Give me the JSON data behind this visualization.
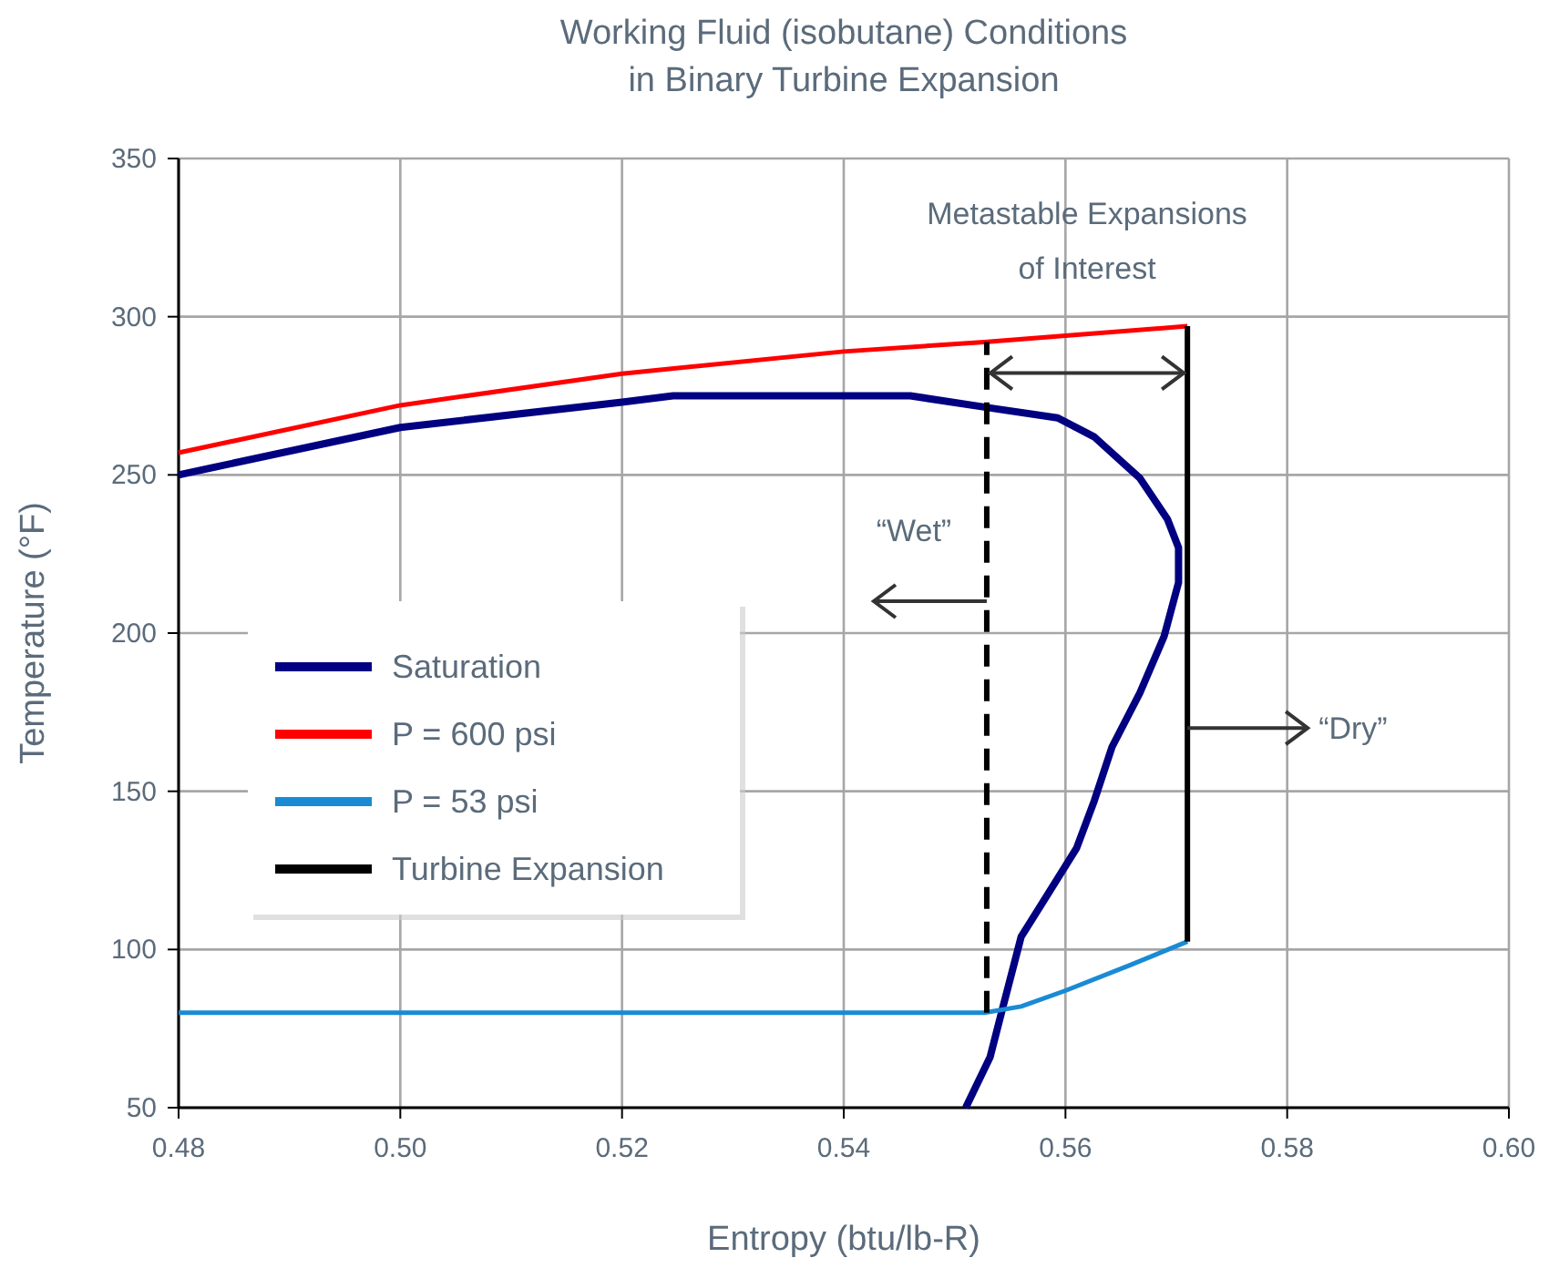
{
  "chart_data": {
    "type": "line",
    "title": "Working Fluid (isobutane) Conditions\nin Binary Turbine Expansion",
    "xlabel": "Entropy (btu/lb-R)",
    "ylabel": "Temperature (°F)",
    "xlim": [
      0.48,
      0.6
    ],
    "xticks": [
      {
        "value": 0.48,
        "label": "0.48"
      },
      {
        "value": 0.5,
        "label": "0.50"
      },
      {
        "value": 0.52,
        "label": "0.52"
      },
      {
        "value": 0.54,
        "label": "0.54"
      },
      {
        "value": 0.56,
        "label": "0.56"
      },
      {
        "value": 0.58,
        "label": "0.58"
      },
      {
        "value": 0.6,
        "label": "0.60"
      }
    ],
    "ylim": [
      50,
      350
    ],
    "yticks": [
      50,
      100,
      150,
      200,
      250,
      300,
      350
    ],
    "grid": true,
    "legend": "left",
    "line_style": "solid",
    "marker": "none",
    "series": [
      {
        "name": "Saturation",
        "color": "#000080",
        "x": [
          0.48,
          0.5,
          0.52,
          0.5246,
          0.546,
          0.5535,
          0.5593,
          0.5626,
          0.5667,
          0.5692,
          0.5702,
          0.5702,
          0.5689,
          0.5667,
          0.5642,
          0.5626,
          0.561,
          0.5585,
          0.556,
          0.5543,
          0.5532,
          0.551
        ],
        "values": [
          250,
          265,
          273,
          275,
          275,
          271,
          268,
          262,
          249,
          236,
          227,
          216,
          199,
          181,
          164,
          147,
          132,
          118,
          104,
          81,
          66,
          50
        ]
      },
      {
        "name": "P = 600 psi",
        "color": "#ff0000",
        "x": [
          0.48,
          0.5,
          0.52,
          0.54,
          0.5527,
          0.56,
          0.571
        ],
        "values": [
          257,
          272,
          282,
          289,
          292,
          294,
          297
        ]
      },
      {
        "name": "P = 53 psi",
        "color": "#1a8ad4",
        "x": [
          0.48,
          0.5527,
          0.556,
          0.56,
          0.5658,
          0.571
        ],
        "values": [
          80,
          80,
          82,
          87,
          95,
          102.5
        ]
      },
      {
        "name": "Turbine Expansion",
        "color": "#000000",
        "x": [
          0.571,
          0.571
        ],
        "values": [
          102.5,
          297
        ]
      },
      {
        "color": "#000000",
        "line_style": "dashed",
        "x": [
          0.5529,
          0.5529
        ],
        "values": [
          80,
          292
        ]
      }
    ],
    "annotations": [
      "Metastable Expansions\nof Interest",
      "“Wet”",
      {
        "text": "“Dry”",
        "x": 0.571,
        "y": 170
      }
    ]
  }
}
